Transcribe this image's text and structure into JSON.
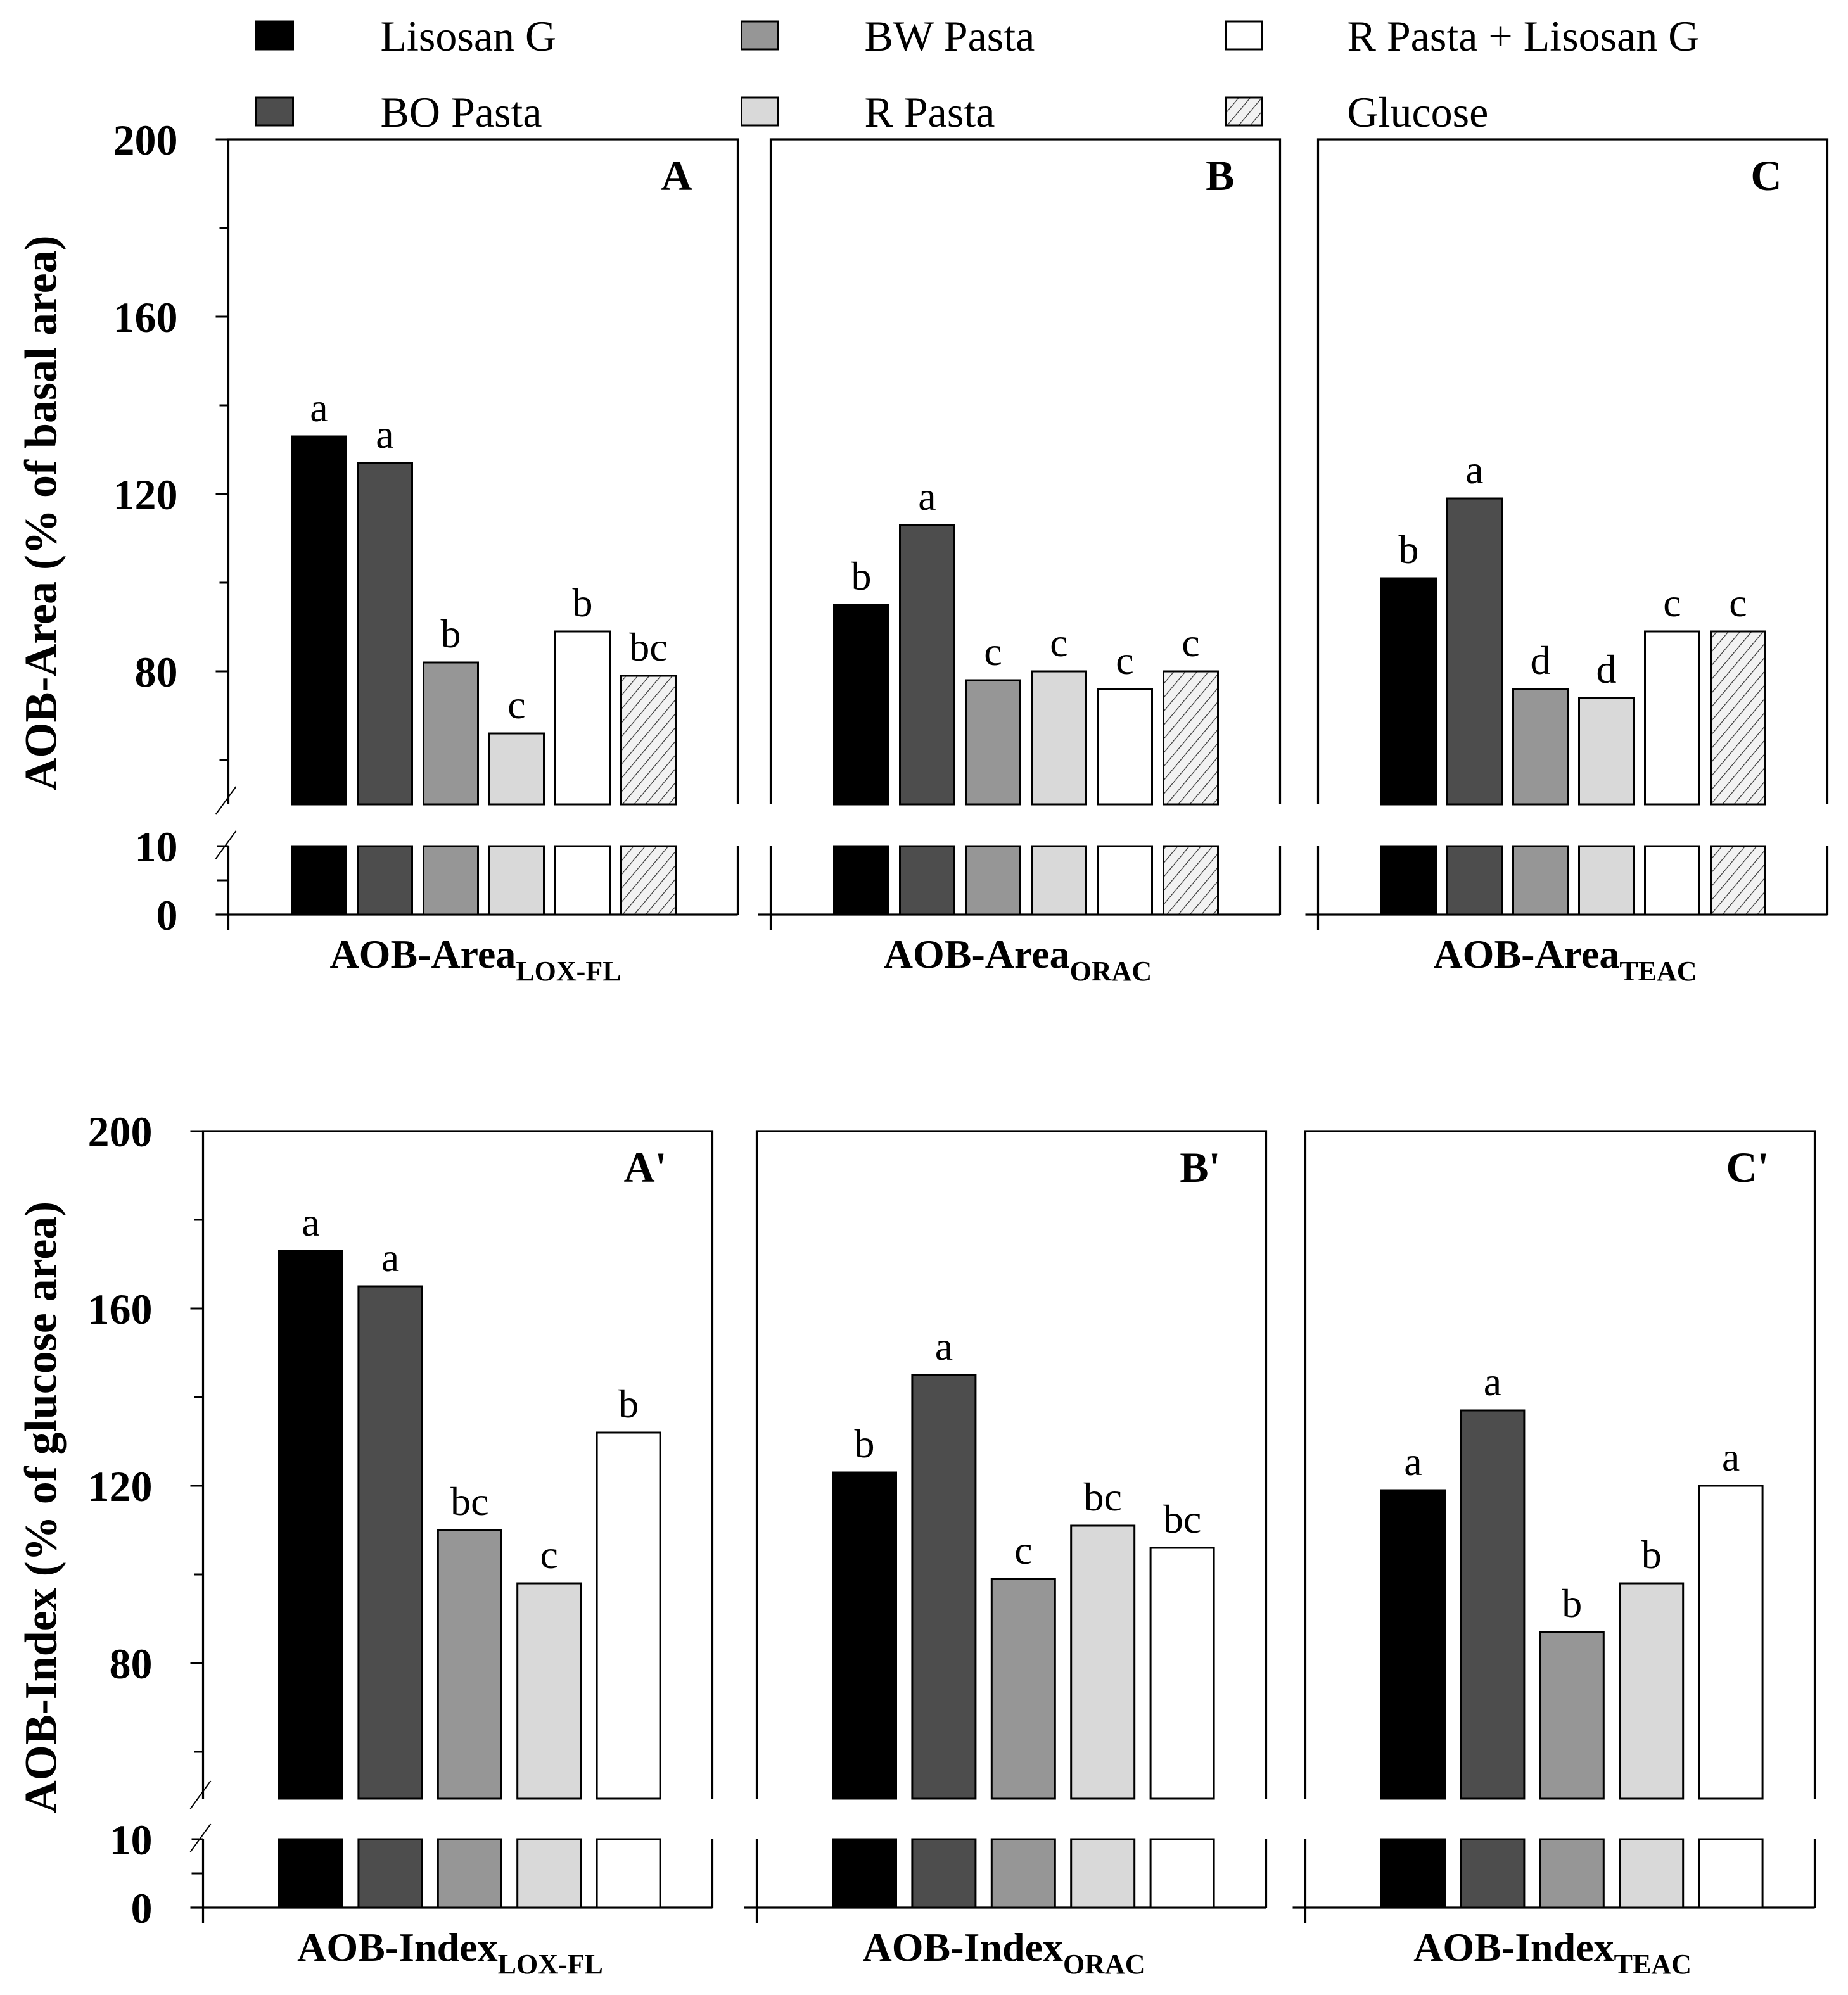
{
  "chart_data": {
    "type": "bar",
    "legend": [
      {
        "name": "Lisosan G",
        "color": "#000000"
      },
      {
        "name": "BO Pasta",
        "color": "#4d4d4d"
      },
      {
        "name": "BW Pasta",
        "color": "#969696"
      },
      {
        "name": "R Pasta",
        "color": "#d9d9d9"
      },
      {
        "name": "R Pasta + Lisosan G",
        "color": "#ffffff"
      },
      {
        "name": "Glucose",
        "color": "hatched"
      }
    ],
    "legend_placement": "top",
    "rows": [
      {
        "ylabel": "AOB-Area (% of basal area)",
        "yticks_upper": [
          "200",
          "160",
          "120",
          "80"
        ],
        "yticks_lower": [
          "10",
          "0"
        ],
        "ylim_upper": [
          50,
          200
        ],
        "ylim_lower": [
          0,
          10
        ],
        "panels": [
          {
            "label": "A",
            "xlabel": "AOB-Area",
            "xlabel_sub": "LOX-FL",
            "values": [
              133,
              127,
              82,
              66,
              89,
              79
            ],
            "letters": [
              "a",
              "a",
              "b",
              "c",
              "b",
              "bc"
            ]
          },
          {
            "label": "B",
            "xlabel": "AOB-Area",
            "xlabel_sub": "ORAC",
            "values": [
              95,
              113,
              78,
              80,
              76,
              80
            ],
            "letters": [
              "b",
              "a",
              "c",
              "c",
              "c",
              "c"
            ]
          },
          {
            "label": "C",
            "xlabel": "AOB-Area",
            "xlabel_sub": "TEAC",
            "values": [
              101,
              119,
              76,
              74,
              89,
              89
            ],
            "letters": [
              "b",
              "a",
              "d",
              "d",
              "c",
              "c"
            ]
          }
        ]
      },
      {
        "ylabel": "AOB-Index (% of glucose area)",
        "yticks_upper": [
          "200",
          "160",
          "120",
          "80"
        ],
        "yticks_lower": [
          "10",
          "0"
        ],
        "ylim_upper": [
          50,
          200
        ],
        "ylim_lower": [
          0,
          10
        ],
        "panels": [
          {
            "label": "A'",
            "xlabel": "AOB-Index",
            "xlabel_sub": "LOX-FL",
            "values": [
              173,
              165,
              110,
              98,
              132
            ],
            "letters": [
              "a",
              "a",
              "bc",
              "c",
              "b"
            ]
          },
          {
            "label": "B'",
            "xlabel": "AOB-Index",
            "xlabel_sub": "ORAC",
            "values": [
              123,
              145,
              99,
              111,
              106
            ],
            "letters": [
              "b",
              "a",
              "c",
              "bc",
              "bc"
            ]
          },
          {
            "label": "C'",
            "xlabel": "AOB-Index",
            "xlabel_sub": "TEAC",
            "values": [
              119,
              137,
              87,
              98,
              120
            ],
            "letters": [
              "a",
              "a",
              "b",
              "b",
              "a"
            ]
          }
        ]
      }
    ]
  }
}
